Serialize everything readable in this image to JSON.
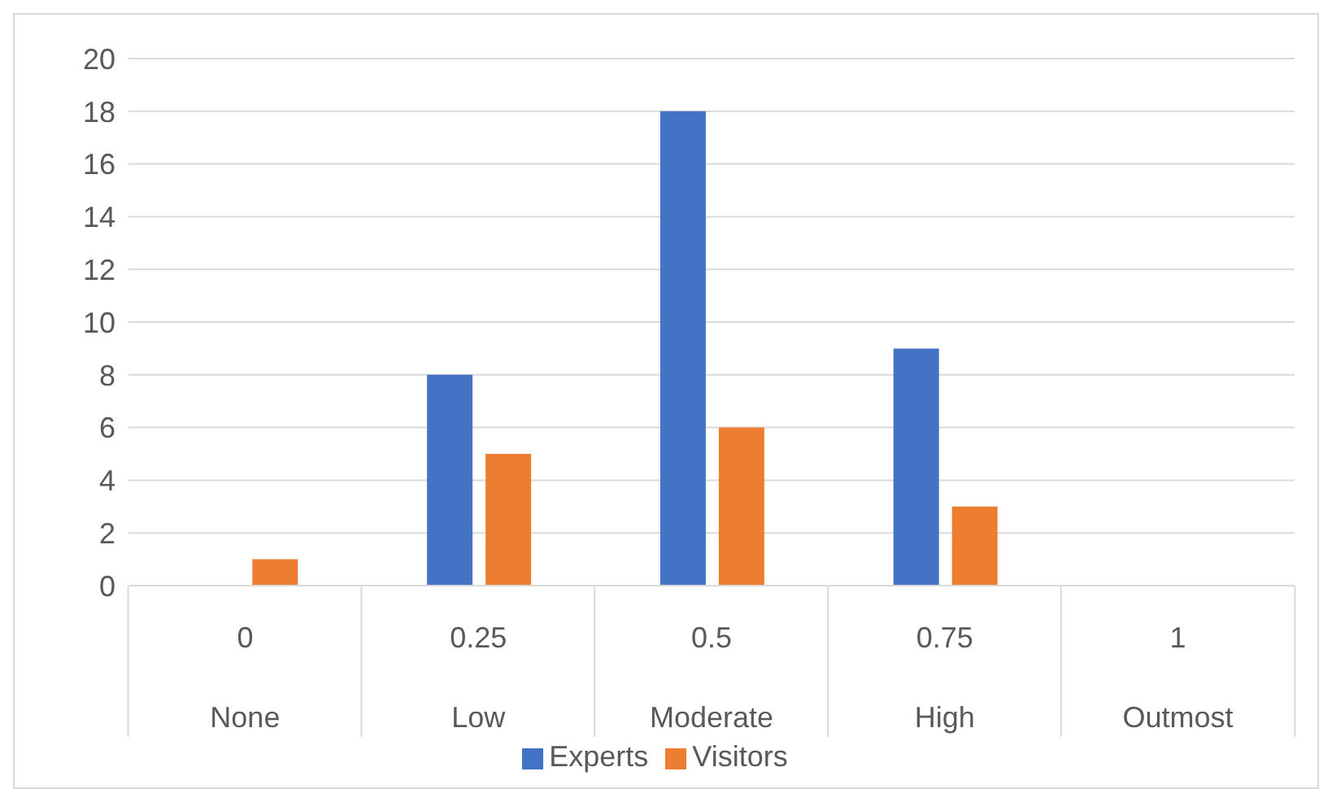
{
  "chart_data": {
    "type": "bar",
    "categories": [
      "0\nNone",
      "0.25\nLow",
      "0.5\nModerate",
      "0.75\nHigh",
      "1\nOutmost"
    ],
    "series": [
      {
        "name": "Experts",
        "color": "#4472c4",
        "values": [
          0,
          8,
          18,
          9,
          0
        ]
      },
      {
        "name": "Visitors",
        "color": "#ed7d31",
        "values": [
          1,
          5,
          6,
          3,
          0
        ]
      }
    ],
    "ylim": [
      0,
      20
    ],
    "yticks": [
      0,
      2,
      4,
      6,
      8,
      10,
      12,
      14,
      16,
      18,
      20
    ],
    "grid": "y",
    "legend": "bottom"
  }
}
